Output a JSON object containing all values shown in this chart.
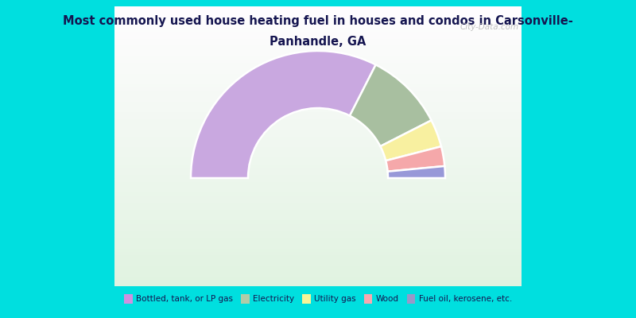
{
  "title_line1": "Most commonly used house heating fuel in houses and condos in Carsonville-",
  "title_line2": "Panhandle, GA",
  "categories": [
    "Bottled, tank, or LP gas",
    "Electricity",
    "Utility gas",
    "Wood",
    "Fuel oil, kerosene, etc."
  ],
  "values": [
    65,
    20,
    7,
    5,
    3
  ],
  "colors": [
    "#c9a8e0",
    "#a8bfa0",
    "#f8f0a0",
    "#f5a8aa",
    "#9898d8"
  ],
  "legend_colors": [
    "#d090e0",
    "#b0cca8",
    "#f8f598",
    "#f8a8b0",
    "#9898c8"
  ],
  "bg_color": "#00dfdf",
  "title_color": "#151550",
  "watermark": "City-Data.com",
  "outer_r": 1.0,
  "inner_r": 0.55
}
